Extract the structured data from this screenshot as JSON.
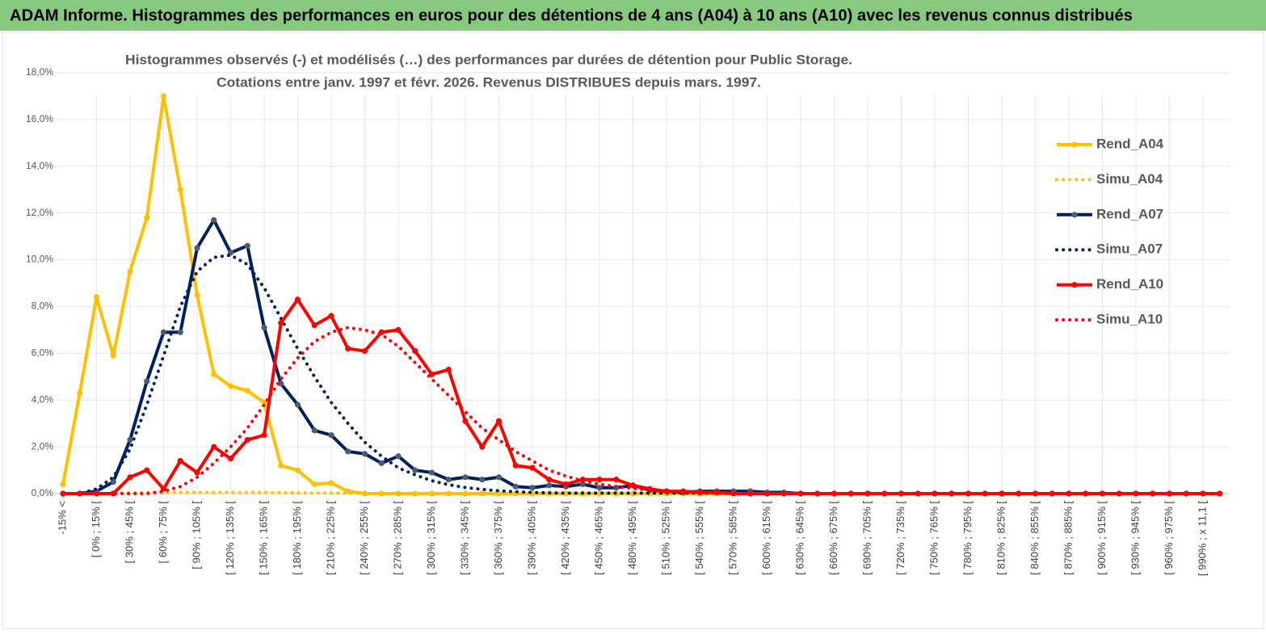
{
  "chart_data": {
    "type": "line",
    "header": "ADAM Informe. Histogrammes des performances en euros pour des détentions de 4 ans (A04) à 10 ans (A10) avec les revenus connus distribués",
    "subtitle": [
      "Histogrammes observés (-) et modélisés (…) des performances par durées de détention pour Public Storage.",
      "Cotations entre janv. 1997 et févr. 2026. Revenus DISTRIBUES depuis mars. 1997."
    ],
    "categories": [
      "-15% <",
      null,
      "[ 0% ; 15% [",
      null,
      "[ 30% ; 45% [",
      null,
      "[ 60% ; 75% [",
      null,
      "[ 90% ; 105% [",
      null,
      "[ 120% ; 135% [",
      null,
      "[ 150% ; 165% [",
      null,
      "[ 180% ; 195% [",
      null,
      "[ 210% ; 225% [",
      null,
      "[ 240% ; 255% [",
      null,
      "[ 270% ; 285% [",
      null,
      "[ 300% ; 315% [",
      null,
      "[ 330% ; 345% [",
      null,
      "[ 360% ; 375% [",
      null,
      "[ 390% ; 405% [",
      null,
      "[ 420% ; 435% [",
      null,
      "[ 450% ; 465% [",
      null,
      "[ 480% ; 495% [",
      null,
      "[ 510% ; 525% [",
      null,
      "[ 540% ; 555% [",
      null,
      "[ 570% ; 585% [",
      null,
      "[ 600% ; 615% [",
      null,
      "[ 630% ; 645% [",
      null,
      "[ 660% ; 675% [",
      null,
      "[ 690% ; 705% [",
      null,
      "[ 720% ; 735% [",
      null,
      "[ 750% ; 765% [",
      null,
      "[ 780% ; 795% [",
      null,
      "[ 810% ; 825% [",
      null,
      "[ 840% ; 855% [",
      null,
      "[ 870% ; 885% [",
      null,
      "[ 900% ; 915% [",
      null,
      "[ 930% ; 945% [",
      null,
      "[ 960% ; 975% [",
      null,
      "[ 990% ; x 11,1 [",
      null
    ],
    "series": [
      {
        "name": "Rend_A04",
        "color": "#ffc000",
        "style": "solid",
        "markers": true,
        "marker_color": "#ffc000",
        "values": [
          0.4,
          4.3,
          8.4,
          5.9,
          9.5,
          11.8,
          17.0,
          13.0,
          8.5,
          5.1,
          4.6,
          4.4,
          3.9,
          1.2,
          1.0,
          0.4,
          0.45,
          0.1,
          0,
          0,
          0,
          0,
          0,
          0,
          0,
          0,
          0,
          0,
          0,
          0,
          0,
          0,
          0,
          0,
          0,
          0,
          0,
          0,
          0,
          0,
          0,
          0,
          0,
          0,
          0,
          0,
          0,
          0,
          0,
          0,
          0,
          0,
          0,
          0,
          0,
          0,
          0,
          0,
          0,
          0,
          0,
          0,
          0,
          0,
          0,
          0,
          0,
          0,
          0,
          0
        ]
      },
      {
        "name": "Simu_A04",
        "color": "#ffc000",
        "style": "dotted",
        "markers": false,
        "values": [
          0,
          0,
          0,
          0.02,
          0.03,
          0.05,
          0.05,
          0.05,
          0.05,
          0.05,
          0.05,
          0.05,
          0.05,
          0.04,
          0.03,
          0.02,
          0.02,
          0.01,
          0.01,
          0.01,
          0,
          0,
          0,
          0,
          0,
          0,
          0,
          0,
          0,
          0,
          0,
          0,
          0,
          0,
          0,
          0,
          0,
          0,
          0,
          0,
          0,
          0,
          0,
          0,
          0,
          0,
          0,
          0,
          0,
          0,
          0,
          0,
          0,
          0,
          0,
          0,
          0,
          0,
          0,
          0,
          0,
          0,
          0,
          0,
          0,
          0,
          0,
          0,
          0,
          0
        ]
      },
      {
        "name": "Rend_A07",
        "color": "#002060",
        "style": "solid",
        "markers": true,
        "marker_color": "#4d5b72",
        "values": [
          0,
          0,
          0.1,
          0.5,
          2.3,
          4.8,
          6.9,
          6.9,
          10.5,
          11.7,
          10.3,
          10.6,
          7.1,
          4.7,
          3.8,
          2.7,
          2.5,
          1.8,
          1.7,
          1.3,
          1.6,
          1.0,
          0.9,
          0.6,
          0.7,
          0.6,
          0.7,
          0.3,
          0.25,
          0.35,
          0.3,
          0.4,
          0.25,
          0.25,
          0.35,
          0.15,
          0.1,
          0.05,
          0.1,
          0.1,
          0.1,
          0.1,
          0.05,
          0.05,
          0,
          0,
          0,
          0,
          0,
          0,
          0,
          0,
          0,
          0,
          0,
          0,
          0,
          0,
          0,
          0,
          0,
          0,
          0,
          0,
          0,
          0,
          0,
          0,
          0,
          0
        ]
      },
      {
        "name": "Simu_A07",
        "color": "#002060",
        "style": "dotted",
        "markers": false,
        "values": [
          0,
          0,
          0.2,
          0.7,
          1.9,
          3.8,
          5.9,
          8.0,
          9.5,
          10.1,
          10.2,
          9.8,
          8.8,
          7.5,
          6.2,
          5.0,
          3.9,
          3.0,
          2.2,
          1.6,
          1.1,
          0.8,
          0.55,
          0.38,
          0.26,
          0.18,
          0.12,
          0.08,
          0.05,
          0.03,
          0.02,
          0.02,
          0.02,
          0.02,
          0.02,
          0.02,
          0.02,
          0.02,
          0.02,
          0.02,
          0,
          0,
          0,
          0,
          0,
          0,
          0,
          0,
          0,
          0,
          0,
          0,
          0,
          0,
          0,
          0,
          0,
          0,
          0,
          0,
          0,
          0,
          0,
          0,
          0,
          0,
          0,
          0,
          0,
          0
        ]
      },
      {
        "name": "Rend_A10",
        "color": "#ff0000",
        "style": "solid",
        "markers": true,
        "marker_color": "#ff0000",
        "values": [
          0,
          0,
          0,
          0,
          0.7,
          1.0,
          0.2,
          1.4,
          0.9,
          2.0,
          1.5,
          2.3,
          2.5,
          7.3,
          8.3,
          7.2,
          7.6,
          6.2,
          6.1,
          6.9,
          7.0,
          6.1,
          5.1,
          5.3,
          3.1,
          2.0,
          3.1,
          1.2,
          1.1,
          0.6,
          0.4,
          0.6,
          0.6,
          0.6,
          0.35,
          0.2,
          0.1,
          0.1,
          0.05,
          0.05,
          0,
          0,
          0,
          0,
          0,
          0,
          0,
          0,
          0,
          0,
          0,
          0,
          0,
          0,
          0,
          0,
          0,
          0,
          0,
          0,
          0,
          0,
          0,
          0,
          0,
          0,
          0,
          0,
          0,
          0
        ]
      },
      {
        "name": "Simu_A10",
        "color": "#ff0000",
        "style": "dotted",
        "markers": false,
        "values": [
          0,
          0,
          0,
          0,
          0,
          0,
          0.1,
          0.3,
          0.7,
          1.3,
          2.0,
          2.8,
          3.8,
          4.9,
          5.8,
          6.5,
          6.9,
          7.1,
          7.0,
          6.8,
          6.3,
          5.6,
          4.9,
          4.2,
          3.5,
          2.8,
          2.3,
          1.8,
          1.4,
          1.0,
          0.75,
          0.55,
          0.4,
          0.3,
          0.22,
          0.15,
          0.1,
          0.07,
          0.05,
          0.03,
          0,
          0,
          0,
          0,
          0,
          0,
          0,
          0,
          0,
          0,
          0,
          0,
          0,
          0,
          0,
          0,
          0,
          0,
          0,
          0,
          0,
          0,
          0,
          0,
          0,
          0,
          0,
          0,
          0,
          0
        ]
      }
    ],
    "ylim": [
      0,
      18
    ],
    "yticks": [
      {
        "value": 0,
        "label": "0,0%"
      },
      {
        "value": 2,
        "label": "2,0%"
      },
      {
        "value": 4,
        "label": "4,0%"
      },
      {
        "value": 6,
        "label": "6,0%"
      },
      {
        "value": 8,
        "label": "8,0%"
      },
      {
        "value": 10,
        "label": "10,0%"
      },
      {
        "value": 12,
        "label": "12,0%"
      },
      {
        "value": 14,
        "label": "14,0%"
      },
      {
        "value": 16,
        "label": "16,0%"
      },
      {
        "value": 18,
        "label": "18,0%"
      }
    ],
    "grid": true,
    "legend": "right"
  }
}
